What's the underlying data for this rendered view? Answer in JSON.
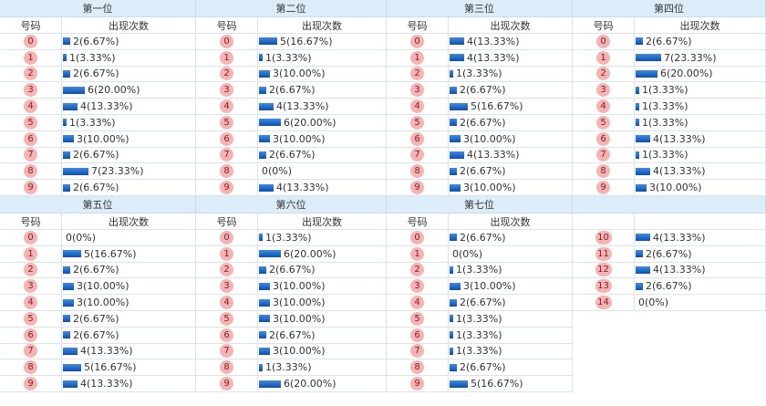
{
  "panels": [
    {
      "title": "第一位",
      "header": [
        "号码",
        "出现次数"
      ],
      "rows": [
        {
          "num": "0",
          "count": 2,
          "label": "2(6.67%)"
        },
        {
          "num": "1",
          "count": 1,
          "label": "1(3.33%)"
        },
        {
          "num": "2",
          "count": 2,
          "label": "2(6.67%)"
        },
        {
          "num": "3",
          "count": 6,
          "label": "6(20.00%)"
        },
        {
          "num": "4",
          "count": 4,
          "label": "4(13.33%)"
        },
        {
          "num": "5",
          "count": 1,
          "label": "1(3.33%)"
        },
        {
          "num": "6",
          "count": 3,
          "label": "3(10.00%)"
        },
        {
          "num": "7",
          "count": 2,
          "label": "2(6.67%)"
        },
        {
          "num": "8",
          "count": 7,
          "label": "7(23.33%)"
        },
        {
          "num": "9",
          "count": 2,
          "label": "2(6.67%)"
        }
      ]
    },
    {
      "title": "第二位",
      "header": [
        "号码",
        "出现次数"
      ],
      "rows": [
        {
          "num": "0",
          "count": 5,
          "label": "5(16.67%)"
        },
        {
          "num": "1",
          "count": 1,
          "label": "1(3.33%)"
        },
        {
          "num": "2",
          "count": 3,
          "label": "3(10.00%)"
        },
        {
          "num": "3",
          "count": 2,
          "label": "2(6.67%)"
        },
        {
          "num": "4",
          "count": 4,
          "label": "4(13.33%)"
        },
        {
          "num": "5",
          "count": 6,
          "label": "6(20.00%)"
        },
        {
          "num": "6",
          "count": 3,
          "label": "3(10.00%)"
        },
        {
          "num": "7",
          "count": 2,
          "label": "2(6.67%)"
        },
        {
          "num": "8",
          "count": 0,
          "label": "0(0%)"
        },
        {
          "num": "9",
          "count": 4,
          "label": "4(13.33%)"
        }
      ]
    },
    {
      "title": "第三位",
      "header": [
        "号码",
        "出现次数"
      ],
      "rows": [
        {
          "num": "0",
          "count": 4,
          "label": "4(13.33%)"
        },
        {
          "num": "1",
          "count": 4,
          "label": "4(13.33%)"
        },
        {
          "num": "2",
          "count": 1,
          "label": "1(3.33%)"
        },
        {
          "num": "3",
          "count": 2,
          "label": "2(6.67%)"
        },
        {
          "num": "4",
          "count": 5,
          "label": "5(16.67%)"
        },
        {
          "num": "5",
          "count": 2,
          "label": "2(6.67%)"
        },
        {
          "num": "6",
          "count": 3,
          "label": "3(10.00%)"
        },
        {
          "num": "7",
          "count": 4,
          "label": "4(13.33%)"
        },
        {
          "num": "8",
          "count": 2,
          "label": "2(6.67%)"
        },
        {
          "num": "9",
          "count": 3,
          "label": "3(10.00%)"
        }
      ]
    },
    {
      "title": "第四位",
      "header": [
        "号码",
        "出现次数"
      ],
      "rows": [
        {
          "num": "0",
          "count": 2,
          "label": "2(6.67%)"
        },
        {
          "num": "1",
          "count": 7,
          "label": "7(23.33%)"
        },
        {
          "num": "2",
          "count": 6,
          "label": "6(20.00%)"
        },
        {
          "num": "3",
          "count": 1,
          "label": "1(3.33%)"
        },
        {
          "num": "4",
          "count": 1,
          "label": "1(3.33%)"
        },
        {
          "num": "5",
          "count": 1,
          "label": "1(3.33%)"
        },
        {
          "num": "6",
          "count": 4,
          "label": "4(13.33%)"
        },
        {
          "num": "7",
          "count": 1,
          "label": "1(3.33%)"
        },
        {
          "num": "8",
          "count": 4,
          "label": "4(13.33%)"
        },
        {
          "num": "9",
          "count": 3,
          "label": "3(10.00%)"
        }
      ]
    },
    {
      "title": "第五位",
      "header": [
        "号码",
        "出现次数"
      ],
      "rows": [
        {
          "num": "0",
          "count": 0,
          "label": "0(0%)"
        },
        {
          "num": "1",
          "count": 5,
          "label": "5(16.67%)"
        },
        {
          "num": "2",
          "count": 2,
          "label": "2(6.67%)"
        },
        {
          "num": "3",
          "count": 3,
          "label": "3(10.00%)"
        },
        {
          "num": "4",
          "count": 3,
          "label": "3(10.00%)"
        },
        {
          "num": "5",
          "count": 2,
          "label": "2(6.67%)"
        },
        {
          "num": "6",
          "count": 2,
          "label": "2(6.67%)"
        },
        {
          "num": "7",
          "count": 4,
          "label": "4(13.33%)"
        },
        {
          "num": "8",
          "count": 5,
          "label": "5(16.67%)"
        },
        {
          "num": "9",
          "count": 4,
          "label": "4(13.33%)"
        }
      ]
    },
    {
      "title": "第六位",
      "header": [
        "号码",
        "出现次数"
      ],
      "rows": [
        {
          "num": "0",
          "count": 1,
          "label": "1(3.33%)"
        },
        {
          "num": "1",
          "count": 6,
          "label": "6(20.00%)"
        },
        {
          "num": "2",
          "count": 2,
          "label": "2(6.67%)"
        },
        {
          "num": "3",
          "count": 3,
          "label": "3(10.00%)"
        },
        {
          "num": "4",
          "count": 3,
          "label": "3(10.00%)"
        },
        {
          "num": "5",
          "count": 3,
          "label": "3(10.00%)"
        },
        {
          "num": "6",
          "count": 2,
          "label": "2(6.67%)"
        },
        {
          "num": "7",
          "count": 3,
          "label": "3(10.00%)"
        },
        {
          "num": "8",
          "count": 1,
          "label": "1(3.33%)"
        },
        {
          "num": "9",
          "count": 6,
          "label": "6(20.00%)"
        }
      ]
    },
    {
      "title": "第七位",
      "header": [
        "号码",
        "出现次数"
      ],
      "rows": [
        {
          "num": "0",
          "count": 2,
          "label": "2(6.67%)"
        },
        {
          "num": "1",
          "count": 0,
          "label": "0(0%)"
        },
        {
          "num": "2",
          "count": 1,
          "label": "1(3.33%)"
        },
        {
          "num": "3",
          "count": 3,
          "label": "3(10.00%)"
        },
        {
          "num": "4",
          "count": 2,
          "label": "2(6.67%)"
        },
        {
          "num": "5",
          "count": 1,
          "label": "1(3.33%)"
        },
        {
          "num": "6",
          "count": 1,
          "label": "1(3.33%)"
        },
        {
          "num": "7",
          "count": 1,
          "label": "1(3.33%)"
        },
        {
          "num": "8",
          "count": 2,
          "label": "2(6.67%)"
        },
        {
          "num": "9",
          "count": 5,
          "label": "5(16.67%)"
        }
      ]
    },
    {
      "rows": [
        {
          "num": "10",
          "count": 4,
          "label": "4(13.33%)"
        },
        {
          "num": "11",
          "count": 2,
          "label": "2(6.67%)"
        },
        {
          "num": "12",
          "count": 4,
          "label": "4(13.33%)"
        },
        {
          "num": "13",
          "count": 2,
          "label": "2(6.67%)"
        },
        {
          "num": "14",
          "count": 0,
          "label": "0(0%)"
        }
      ]
    }
  ]
}
